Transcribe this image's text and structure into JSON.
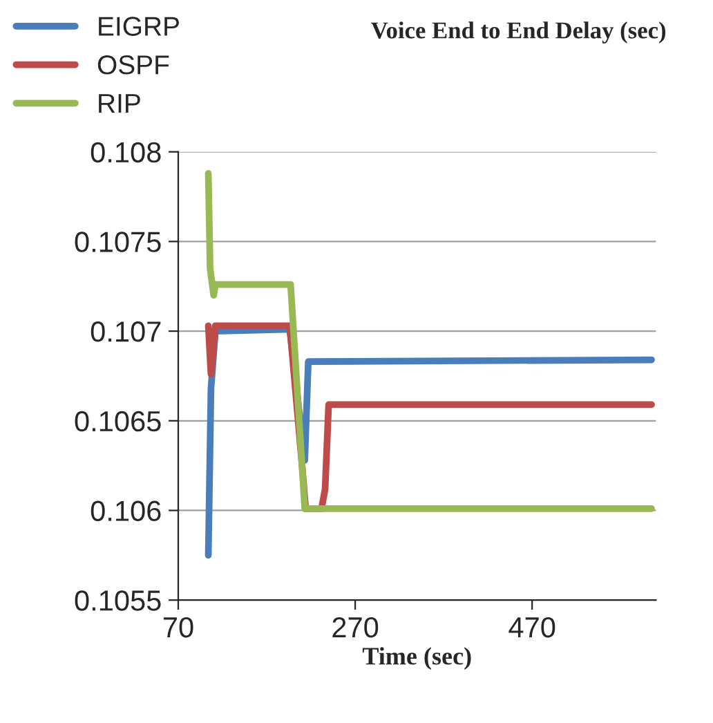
{
  "chart_data": {
    "type": "line",
    "title": "Voice End to End Delay (sec)",
    "xlabel": "Time (sec)",
    "xlim": [
      70,
      610
    ],
    "xticks": [
      70,
      270,
      470
    ],
    "ylim": [
      0.1055,
      0.108
    ],
    "yticks": [
      {
        "value": 0.1055,
        "label": "0.1055"
      },
      {
        "value": 0.106,
        "label": "0.106"
      },
      {
        "value": 0.1065,
        "label": "0.1065"
      },
      {
        "value": 0.107,
        "label": "0.107"
      },
      {
        "value": 0.1075,
        "label": "0.1075"
      },
      {
        "value": 0.108,
        "label": "0.108"
      }
    ],
    "grid": "y",
    "legend": "top left",
    "marker": "none",
    "line_style": "solid",
    "series": [
      {
        "name": "EIGRP",
        "color": "#4a7ebb",
        "x": [
          104,
          107,
          112,
          196,
          213,
          217,
          605
        ],
        "values": [
          0.10575,
          0.10668,
          0.107,
          0.10701,
          0.10628,
          0.10683,
          0.10684
        ]
      },
      {
        "name": "OSPF",
        "color": "#be4b48",
        "x": [
          104,
          107,
          112,
          196,
          210,
          214,
          232,
          236,
          240,
          605
        ],
        "values": [
          0.10703,
          0.10676,
          0.10703,
          0.10703,
          0.10625,
          0.10601,
          0.10601,
          0.10612,
          0.10659,
          0.10659
        ]
      },
      {
        "name": "RIP",
        "color": "#98b954",
        "x": [
          104,
          106,
          110,
          112,
          197,
          213,
          605
        ],
        "values": [
          0.10788,
          0.10735,
          0.1072,
          0.10726,
          0.10726,
          0.10601,
          0.10601
        ]
      }
    ]
  }
}
